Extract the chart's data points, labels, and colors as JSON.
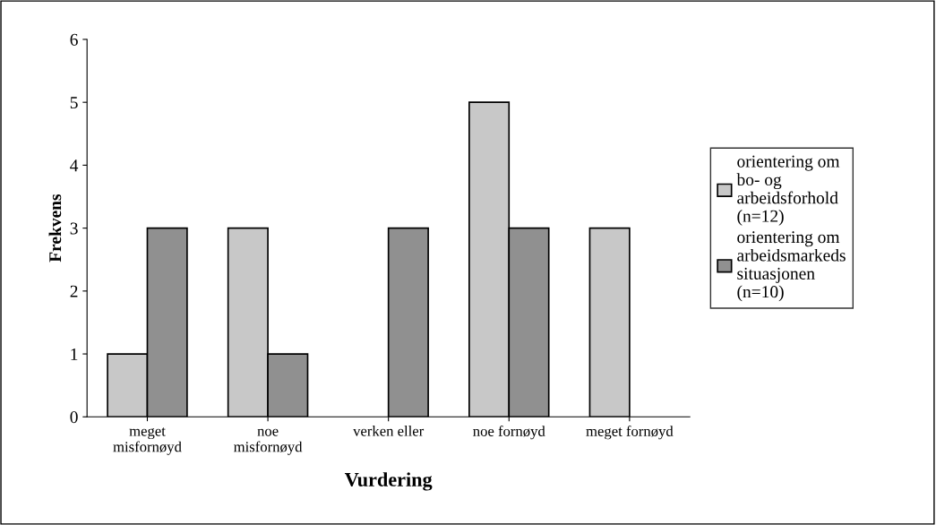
{
  "chart_data": {
    "type": "bar",
    "xlabel": "Vurdering",
    "ylabel": "Frekvens",
    "categories": [
      "meget\nmisfornøyd",
      "noe\nmisfornøyd",
      "verken eller",
      "noe fornøyd",
      "meget fornøyd"
    ],
    "series": [
      {
        "name": "orientering om\nbo- og\narbeidsforhold\n(n=12)",
        "color": "#c8c8c8",
        "values": [
          1,
          3,
          0,
          5,
          3
        ]
      },
      {
        "name": "orientering om\narbeidsmarkeds\nsituasjonen\n(n=10)",
        "color": "#909090",
        "values": [
          3,
          1,
          3,
          3,
          0
        ]
      }
    ],
    "ylim": [
      0,
      6
    ],
    "yticks": [
      0,
      1,
      2,
      3,
      4,
      5,
      6
    ],
    "grid": false,
    "legend": "right"
  }
}
